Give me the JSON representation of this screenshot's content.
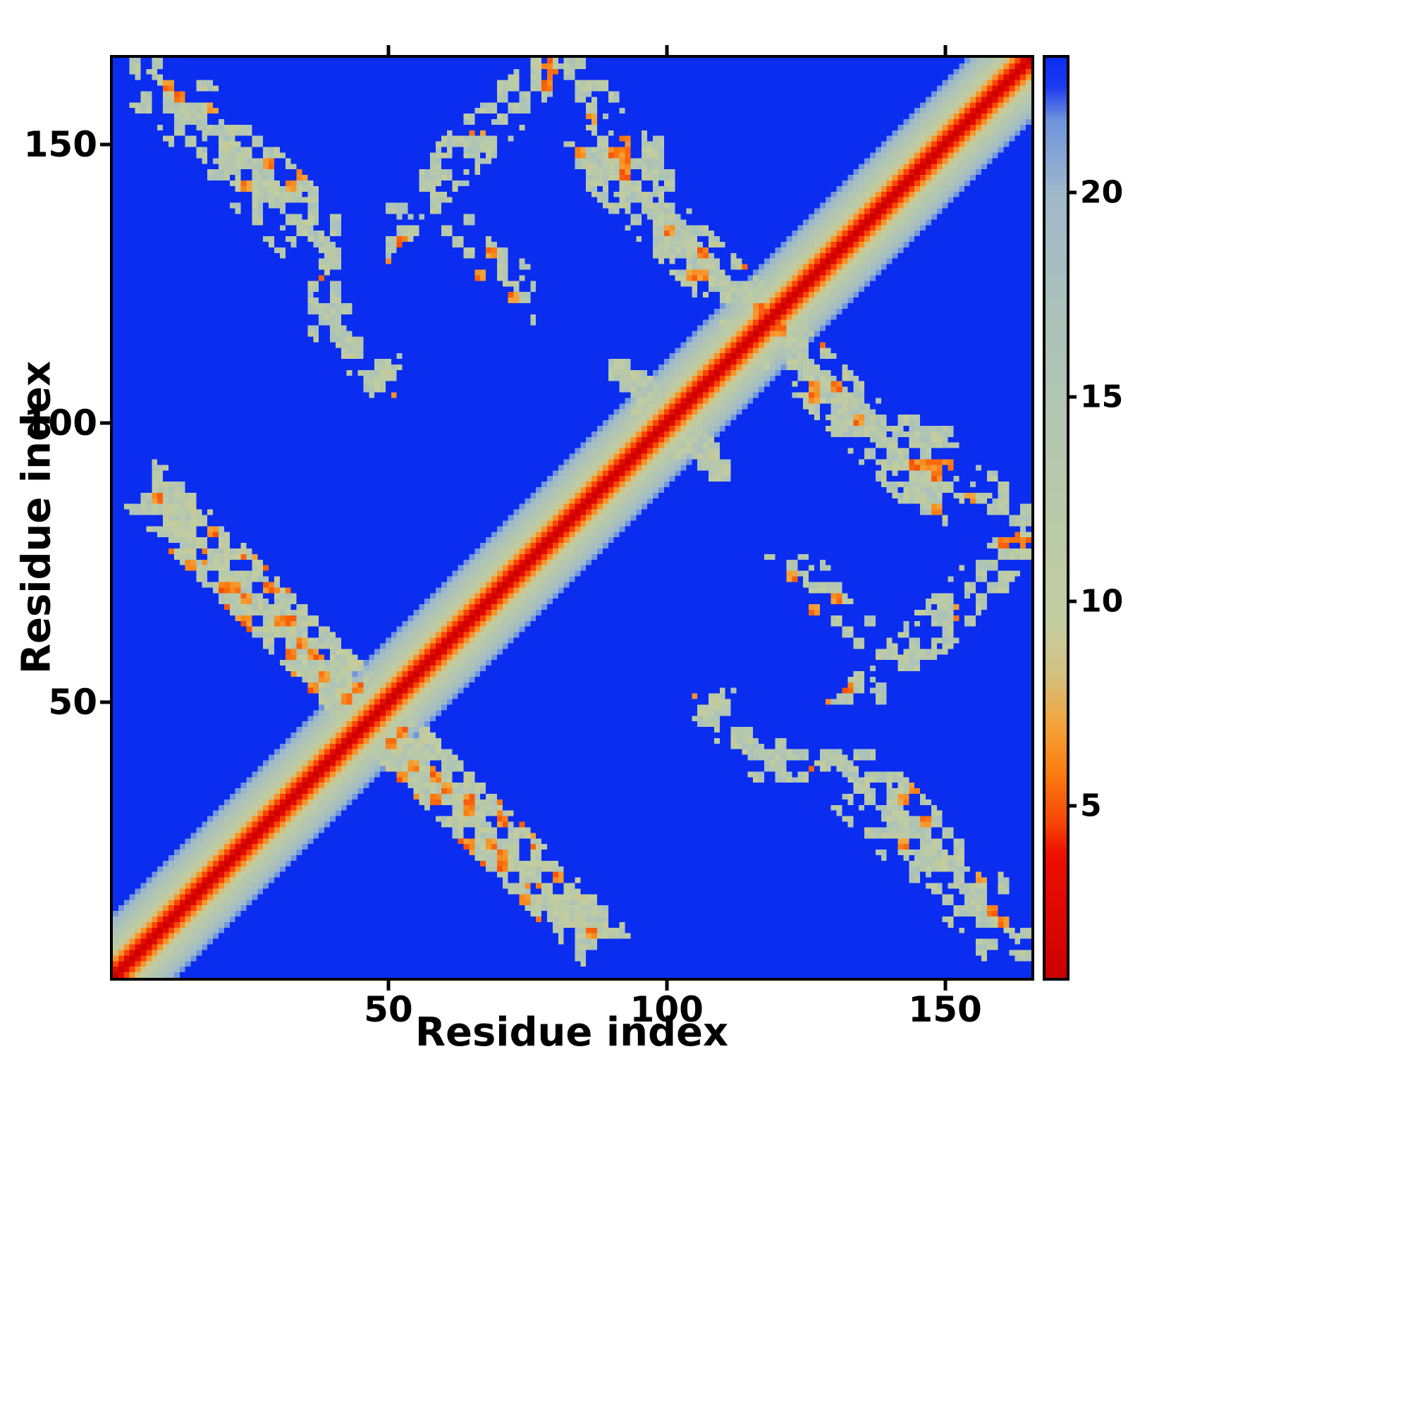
{
  "chart_data": {
    "type": "heatmap",
    "title": "",
    "xlabel": "Residue index",
    "ylabel": "Residue index",
    "x_range": [
      1,
      165
    ],
    "y_range": [
      1,
      165
    ],
    "x_ticks": [
      50,
      100,
      150
    ],
    "y_ticks": [
      50,
      100,
      150
    ],
    "grid": false,
    "n_residues": 165,
    "colorbar": {
      "orientation": "vertical",
      "min": 0.8,
      "max": 23.3,
      "ticks": [
        5,
        10,
        15,
        20
      ]
    },
    "colors": {
      "background_blue": "#0b2df0",
      "diagonal_red": "#e00000",
      "contact_orange": "#fb7d10",
      "contact_pale": "#b6c8ab",
      "axis_black": "#000000"
    },
    "colormap_stops": [
      [
        0.8,
        "#cc0000"
      ],
      [
        3.8,
        "#ee0f00"
      ],
      [
        4.6,
        "#f74708"
      ],
      [
        5.8,
        "#fb7d10"
      ],
      [
        7.0,
        "#f2a43a"
      ],
      [
        8.2,
        "#d3c182"
      ],
      [
        9.5,
        "#c2cda0"
      ],
      [
        13.0,
        "#b6c8ab"
      ],
      [
        17.0,
        "#abc2ba"
      ],
      [
        20.0,
        "#9fb8cb"
      ],
      [
        21.8,
        "#6f94dd"
      ],
      [
        22.6,
        "#1d3cf0"
      ],
      [
        23.3,
        "#0b2df0"
      ]
    ],
    "matrix_model": {
      "description": "Symmetric 165x165 residue-residue distance map: red main diagonal (short distances) with orange-to-pale gradient band, ragged anti-diagonal and parallel contact bands (beta-sheet X patterns) with orange speckles, deep blue background for distances beyond colormap max.",
      "background_value": 25,
      "diagonal": {
        "base": 0.8,
        "slope": 1.9
      },
      "seed": 7,
      "patches": [
        {
          "kind": "anti",
          "c": 170,
          "i0": 4,
          "i1": 41,
          "w": 9,
          "density": 0.8,
          "orange": 0.12
        },
        {
          "kind": "anti",
          "c": 95,
          "i0": 8,
          "i1": 87,
          "w": 7,
          "density": 0.8,
          "orange": 0.14
        },
        {
          "kind": "anti",
          "c": 235,
          "i0": 88,
          "i1": 150,
          "w": 7,
          "density": 0.8,
          "orange": 0.12
        },
        {
          "kind": "para",
          "o": 85,
          "i0": 50,
          "i1": 80,
          "w": 6,
          "density": 0.7,
          "orange": 0.1
        },
        {
          "kind": "anti",
          "c": 245,
          "i0": 79,
          "i1": 101,
          "w": 6,
          "density": 0.7,
          "orange": 0.1
        },
        {
          "kind": "anti",
          "c": 158,
          "i0": 36,
          "i1": 53,
          "w": 6,
          "density": 0.6,
          "orange": 0.08
        },
        {
          "kind": "anti",
          "c": 200,
          "i0": 90,
          "i1": 107,
          "w": 5,
          "density": 0.5,
          "orange": 0.08
        },
        {
          "kind": "anti",
          "c": 198,
          "i0": 58,
          "i1": 76,
          "w": 6,
          "density": 0.5,
          "orange": 0.08
        }
      ]
    }
  }
}
